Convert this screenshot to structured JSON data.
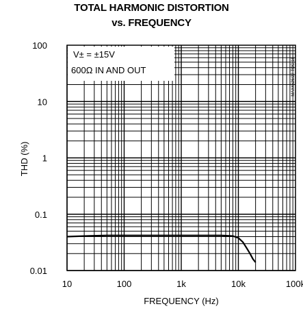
{
  "chart_data": {
    "type": "line",
    "title": "TOTAL HARMONIC DISTORTION",
    "subtitle": "vs. FREQUENCY",
    "xlabel": "FREQUENCY (Hz)",
    "ylabel": "THD (%)",
    "x_scale": "log",
    "y_scale": "log",
    "xlim": [
      10,
      100000
    ],
    "ylim": [
      0.01,
      100
    ],
    "x_tick_labels": [
      "10",
      "100",
      "1k",
      "10k",
      "100k"
    ],
    "y_tick_labels": [
      "100",
      "10",
      "1",
      "0.1",
      "0.01"
    ],
    "grid": true,
    "annotations": [
      "V± = ±15V",
      "600Ω IN AND OUT"
    ],
    "figure_ref": "MAX4526/27 TOC-16",
    "series": [
      {
        "x": [
          10,
          20,
          50,
          100,
          200,
          500,
          1000,
          2000,
          5000,
          8000,
          10000,
          12000,
          14000,
          16000,
          18000,
          20000
        ],
        "y": [
          0.04,
          0.041,
          0.042,
          0.042,
          0.042,
          0.042,
          0.042,
          0.042,
          0.042,
          0.041,
          0.038,
          0.032,
          0.025,
          0.02,
          0.016,
          0.014
        ]
      }
    ]
  }
}
